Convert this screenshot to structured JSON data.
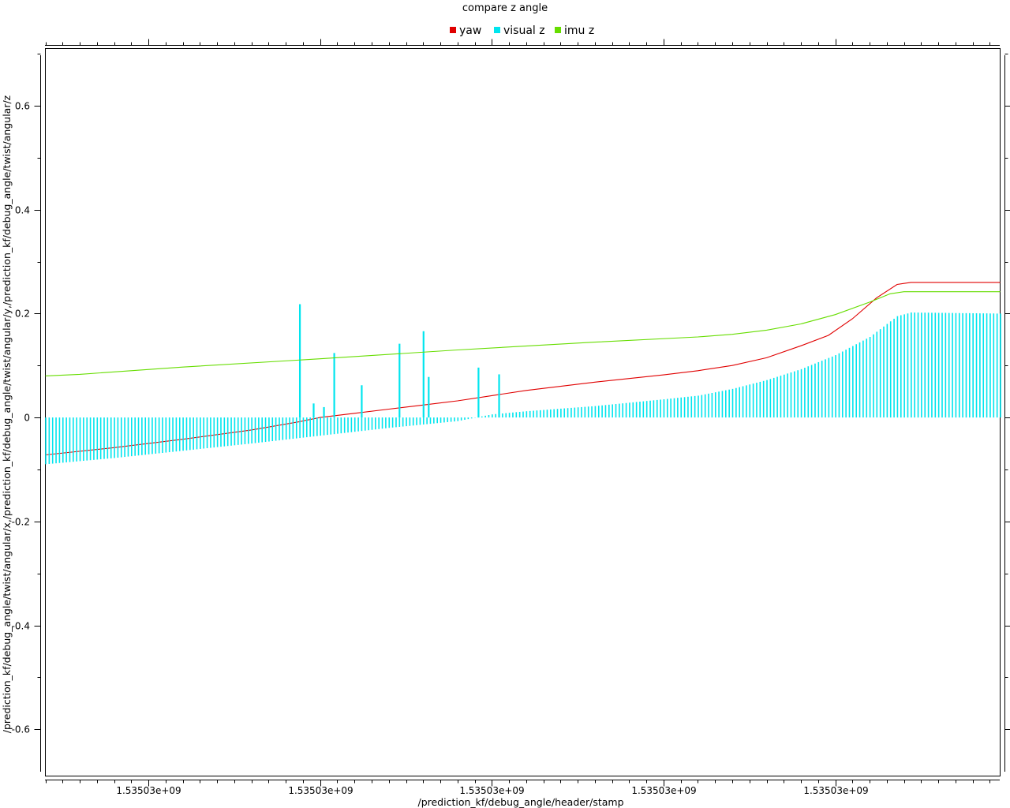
{
  "chart_data": {
    "type": "line",
    "title": "compare z angle",
    "xlabel": "/prediction_kf/debug_angle/header/stamp",
    "ylabel": "/prediction_kf/debug_angle/twist/angular/x,/prediction_kf/debug_angle/twist/angular/y,/prediction_kf/debug_angle/twist/angular/z",
    "xlim": [
      0,
      27.8
    ],
    "ylim": [
      -0.69,
      0.71
    ],
    "x_ticks": [
      {
        "value": 3,
        "label": "1.53503e+09"
      },
      {
        "value": 8,
        "label": "1.53503e+09"
      },
      {
        "value": 13,
        "label": "1.53503e+09"
      },
      {
        "value": 18,
        "label": "1.53503e+09"
      },
      {
        "value": 23,
        "label": "1.53503e+09"
      }
    ],
    "x_minor_step": 0.5,
    "y_ticks": [
      {
        "value": -0.6,
        "label": "-0.6"
      },
      {
        "value": -0.4,
        "label": "-0.4"
      },
      {
        "value": -0.2,
        "label": "-0.2"
      },
      {
        "value": 0,
        "label": "0"
      },
      {
        "value": 0.2,
        "label": "0.2"
      },
      {
        "value": 0.4,
        "label": "0.4"
      },
      {
        "value": 0.6,
        "label": "0.6"
      }
    ],
    "y_minor_step": 0.1,
    "legend_position": "top-center",
    "series": [
      {
        "name": "yaw",
        "style": "line",
        "color": "#e00000",
        "points": [
          [
            0,
            -0.072
          ],
          [
            2,
            -0.058
          ],
          [
            4,
            -0.042
          ],
          [
            6,
            -0.024
          ],
          [
            7.4,
            -0.008
          ],
          [
            8,
            0.0
          ],
          [
            9,
            0.008
          ],
          [
            10,
            0.016
          ],
          [
            11,
            0.024
          ],
          [
            12,
            0.032
          ],
          [
            13,
            0.042
          ],
          [
            14,
            0.052
          ],
          [
            15,
            0.06
          ],
          [
            16,
            0.068
          ],
          [
            17,
            0.075
          ],
          [
            18,
            0.082
          ],
          [
            19,
            0.09
          ],
          [
            20,
            0.1
          ],
          [
            21,
            0.115
          ],
          [
            22,
            0.138
          ],
          [
            22.8,
            0.158
          ],
          [
            23.5,
            0.19
          ],
          [
            24.2,
            0.23
          ],
          [
            24.8,
            0.256
          ],
          [
            25.2,
            0.26
          ],
          [
            27.8,
            0.26
          ]
        ]
      },
      {
        "name": "visual z",
        "style": "stems",
        "color": "#00e5ee",
        "baseline": 0,
        "x_start": 0,
        "x_end": 27.8,
        "sample_step": 0.1,
        "envelope": [
          [
            0,
            -0.09
          ],
          [
            2,
            -0.078
          ],
          [
            4,
            -0.064
          ],
          [
            6,
            -0.05
          ],
          [
            8,
            -0.035
          ],
          [
            10,
            -0.02
          ],
          [
            12,
            -0.007
          ],
          [
            13,
            0.006
          ],
          [
            14,
            0.012
          ],
          [
            16,
            0.022
          ],
          [
            18,
            0.035
          ],
          [
            19,
            0.042
          ],
          [
            20,
            0.055
          ],
          [
            21,
            0.072
          ],
          [
            22,
            0.093
          ],
          [
            23,
            0.12
          ],
          [
            24,
            0.155
          ],
          [
            24.8,
            0.195
          ],
          [
            25.2,
            0.202
          ],
          [
            27.8,
            0.2
          ]
        ],
        "spikes": [
          [
            7.4,
            0.218
          ],
          [
            7.8,
            0.027
          ],
          [
            8.1,
            0.02
          ],
          [
            8.4,
            0.124
          ],
          [
            9.2,
            0.062
          ],
          [
            10.3,
            0.142
          ],
          [
            11.0,
            0.166
          ],
          [
            11.15,
            0.078
          ],
          [
            12.6,
            0.096
          ],
          [
            13.2,
            0.083
          ]
        ]
      },
      {
        "name": "imu z",
        "style": "line",
        "color": "#66dd00",
        "points": [
          [
            0,
            0.08
          ],
          [
            1,
            0.083
          ],
          [
            4,
            0.097
          ],
          [
            8,
            0.113
          ],
          [
            12,
            0.13
          ],
          [
            16,
            0.145
          ],
          [
            19,
            0.155
          ],
          [
            20,
            0.16
          ],
          [
            21,
            0.168
          ],
          [
            22,
            0.18
          ],
          [
            23,
            0.198
          ],
          [
            24,
            0.222
          ],
          [
            24.6,
            0.238
          ],
          [
            25,
            0.242
          ],
          [
            27.8,
            0.242
          ]
        ]
      }
    ]
  }
}
